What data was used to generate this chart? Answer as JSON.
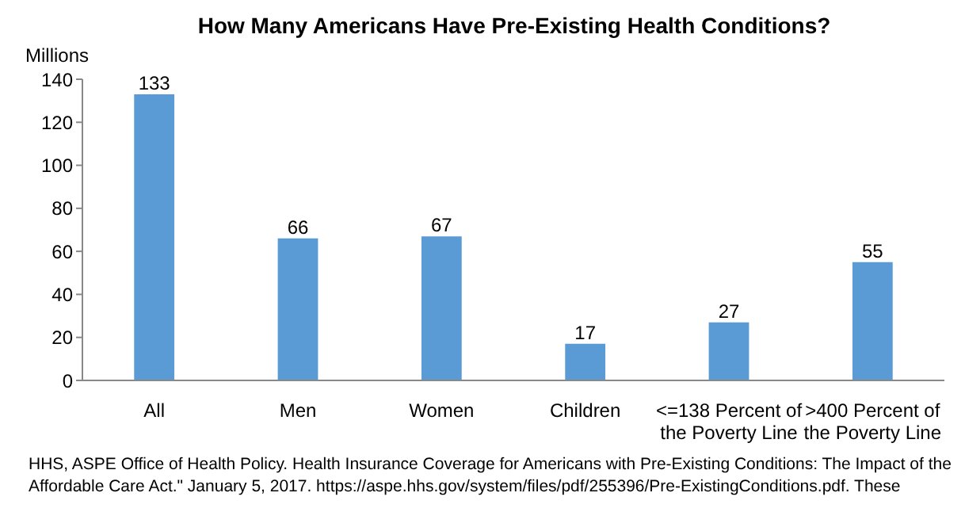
{
  "chart_data": {
    "type": "bar",
    "title": "How Many Americans Have Pre-Existing Health Conditions?",
    "ylabel": "Millions",
    "categories": [
      "All",
      "Men",
      "Women",
      "Children",
      "<=138 Percent of the Poverty Line",
      ">400 Percent of the Poverty Line"
    ],
    "values": [
      133,
      66,
      67,
      17,
      27,
      55
    ],
    "color": "#5b9bd5",
    "ylim": [
      0,
      140
    ],
    "yticks": [
      0,
      20,
      40,
      60,
      80,
      100,
      120,
      140
    ],
    "grid": false,
    "data_labels": true,
    "annotations": [
      "HHS, ASPE Office of Health Policy. Health Insurance Coverage for Americans with Pre-Existing Conditions: The Impact of the Affordable Care Act.\" January 5, 2017. https://aspe.hhs.gov/system/files/pdf/255396/Pre-ExistingConditions.pdf. These"
    ]
  }
}
